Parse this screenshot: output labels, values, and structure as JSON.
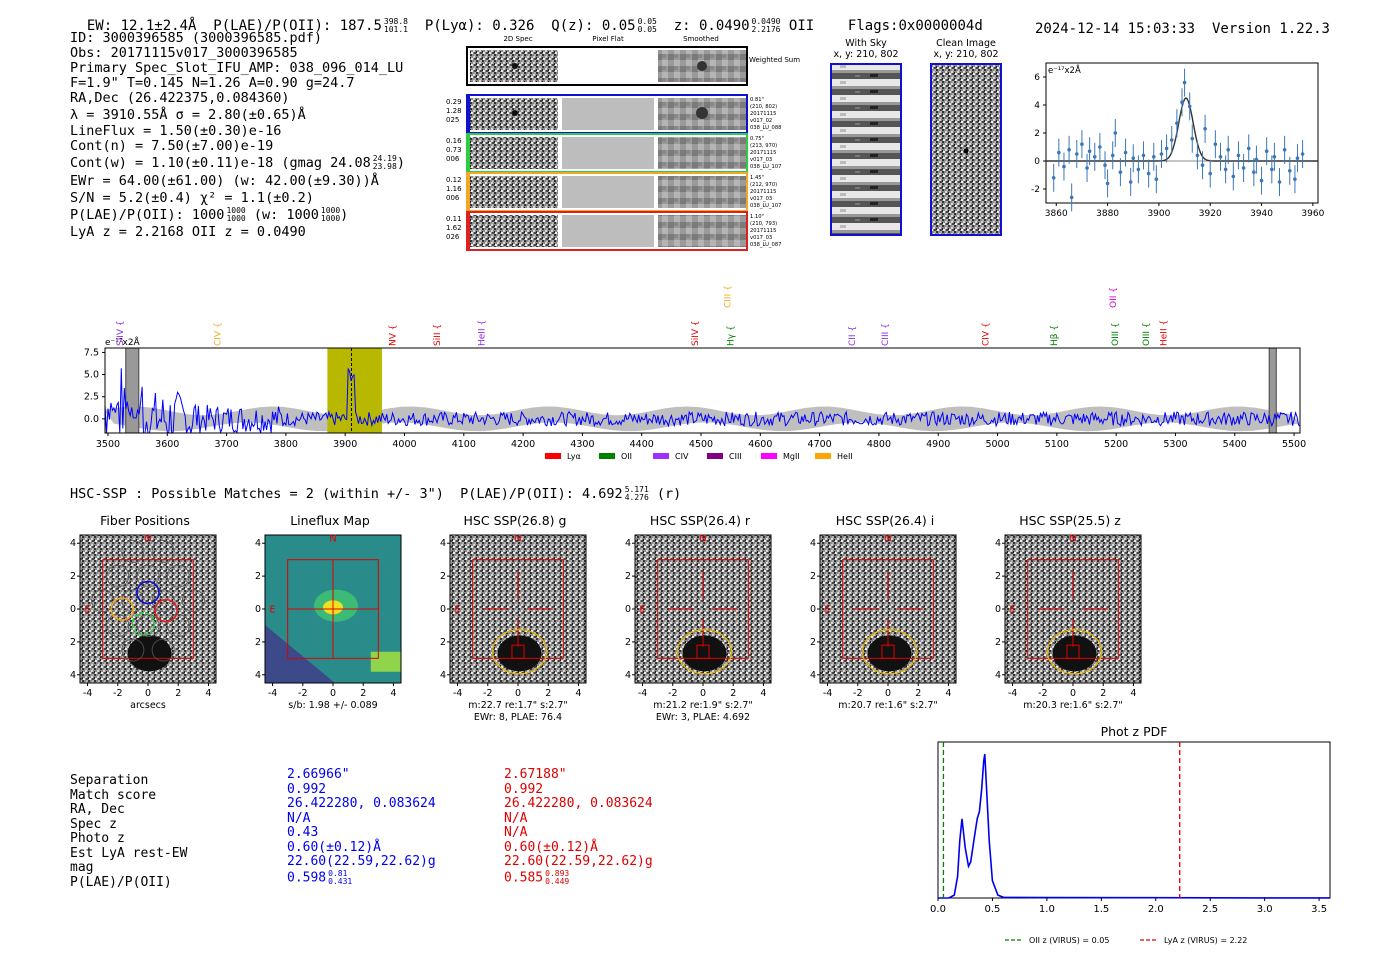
{
  "header": {
    "ew": "EW: 12.1±2.4Å",
    "plae": "P(LAE)/P(OII): 187.5",
    "plae_hi": "398.8",
    "plae_lo": "101.1",
    "plya": "P(Lyα): 0.326",
    "qz": "Q(z): 0.05",
    "qz_hi": "0.05",
    "qz_lo": "0.05",
    "z": "z: 0.0490",
    "z_hi": "0.0490",
    "z_lo": "2.2176",
    "z_line": "OII",
    "flags": "Flags:0x0000004d",
    "datetime": "2024-12-14 15:03:33",
    "version": "Version 1.22.3"
  },
  "info": {
    "id": "ID: 3000396585 (3000396585.pdf)",
    "obs": "Obs: 20171115v017_3000396585",
    "primary": "Primary Spec_Slot_IFU_AMP: 038_096_014_LU",
    "fit": "F=1.9\"  T=0.145  N=1.26  A=0.90  g=24.7",
    "radec": "RA,Dec (26.422375,0.084360)",
    "lambda": "λ = 3910.55Å   σ = 2.80(±0.65)Å",
    "lineflux": "LineFlux = 1.50(±0.30)e-16",
    "contn": "Cont(n) = 7.50(±7.00)e-19",
    "contw": "Cont(w) = 1.10(±0.11)e-18 (gmag 24.08",
    "contw_hi": "24.19",
    "contw_lo": "23.98",
    "ewr": "EWr = 64.00(±61.00) (w: 42.00(±9.30))Å",
    "sn": "S/N = 5.2(±0.4)  χ² = 1.1(±0.2)",
    "plae": "P(LAE)/P(OII): 1000",
    "plae_a_hi": "1000",
    "plae_a_lo": "1000",
    "plae_w": "(w: 1000",
    "plae_b_hi": "1000",
    "plae_b_lo": "1000",
    "lyaz": "LyA z = 2.2168   OII z = 0.0490"
  },
  "cutouts": {
    "col_2d": "2D Spec",
    "col_flat": "Pixel Flat",
    "col_smooth": "Smoothed",
    "weighted": "Weighted Sum",
    "rows": [
      {
        "left": [
          "0.29",
          "1.28",
          "025"
        ],
        "right": [
          "0.81\"",
          "(210, 802)",
          "20171115",
          "v017_02",
          "038_LU_088"
        ]
      },
      {
        "left": [
          "0.16",
          "0.73",
          "006"
        ],
        "right": [
          "0.75\"",
          "(213, 970)",
          "20171115",
          "v017_03",
          "038_LU_107"
        ]
      },
      {
        "left": [
          "0.12",
          "1.16",
          "006"
        ],
        "right": [
          "1.45\"",
          "(212, 970)",
          "20171115",
          "v017_03",
          "038_LU_107"
        ]
      },
      {
        "left": [
          "0.11",
          "1.62",
          "026"
        ],
        "right": [
          "1.10\"",
          "(210, 793)",
          "20171115",
          "v017_03",
          "038_LU_087"
        ]
      }
    ],
    "with_sky": "With Sky",
    "with_sky_xy": "x, y: 210, 802",
    "clean": "Clean Image",
    "clean_xy": "x, y: 210, 802"
  },
  "colors": {
    "row1": "#1010d0",
    "row2": "#2ecc40",
    "row3": "#f5a623",
    "row4": "#e02020",
    "spec_blue": "#0000ff",
    "fit_line": "#3a78b8",
    "olive": "#b8b800"
  },
  "chart_data": [
    {
      "type": "scatter",
      "title": "",
      "ylabel": "e⁻¹⁷x2Å",
      "xlim": [
        3856,
        3962
      ],
      "ylim": [
        -3,
        7
      ],
      "xticks": [
        3860,
        3880,
        3900,
        3920,
        3940,
        3960
      ],
      "yticks": [
        -2,
        0,
        2,
        4,
        6
      ],
      "fit": {
        "center": 3910.55,
        "sigma": 2.8,
        "amp": 4.5,
        "baseline": 0.0
      },
      "points": [
        [
          3859,
          -1.2
        ],
        [
          3861,
          0.6
        ],
        [
          3863,
          -0.4
        ],
        [
          3865,
          0.8
        ],
        [
          3866,
          -2.6
        ],
        [
          3868,
          0.5
        ],
        [
          3870,
          1.2
        ],
        [
          3872,
          -0.5
        ],
        [
          3873,
          0.7
        ],
        [
          3875,
          0.3
        ],
        [
          3877,
          1.0
        ],
        [
          3879,
          -0.3
        ],
        [
          3880,
          -1.6
        ],
        [
          3882,
          0.4
        ],
        [
          3883,
          2.0
        ],
        [
          3885,
          -0.8
        ],
        [
          3887,
          0.6
        ],
        [
          3889,
          -1.5
        ],
        [
          3890,
          0.2
        ],
        [
          3892,
          -0.6
        ],
        [
          3894,
          0.4
        ],
        [
          3896,
          -0.9
        ],
        [
          3898,
          0.3
        ],
        [
          3899,
          -1.3
        ],
        [
          3901,
          0.5
        ],
        [
          3903,
          0.9
        ],
        [
          3905,
          1.5
        ],
        [
          3907,
          2.7
        ],
        [
          3909,
          4.2
        ],
        [
          3910,
          5.6
        ],
        [
          3912,
          3.9
        ],
        [
          3913,
          1.6
        ],
        [
          3915,
          0.4
        ],
        [
          3917,
          -0.3
        ],
        [
          3918,
          2.3
        ],
        [
          3920,
          -0.9
        ],
        [
          3922,
          1.2
        ],
        [
          3924,
          0.3
        ],
        [
          3926,
          -0.6
        ],
        [
          3927,
          0.8
        ],
        [
          3929,
          -1.1
        ],
        [
          3931,
          0.4
        ],
        [
          3933,
          -0.5
        ],
        [
          3935,
          0.9
        ],
        [
          3937,
          -0.8
        ],
        [
          3938,
          0.1
        ],
        [
          3940,
          -1.4
        ],
        [
          3942,
          0.7
        ],
        [
          3944,
          -0.6
        ],
        [
          3945,
          0.3
        ],
        [
          3947,
          -1.5
        ],
        [
          3949,
          0.8
        ],
        [
          3951,
          -0.7
        ],
        [
          3953,
          -1.3
        ],
        [
          3954,
          0.2
        ],
        [
          3956,
          0.5
        ]
      ]
    },
    {
      "type": "line",
      "ylabel": "e⁻¹⁷x2Å",
      "xlim": [
        3495,
        5510
      ],
      "ylim": [
        -1.6,
        8
      ],
      "xticks": [
        3500,
        3600,
        3700,
        3800,
        3900,
        4000,
        4100,
        4200,
        4300,
        4400,
        4500,
        4600,
        4700,
        4800,
        4900,
        5000,
        5100,
        5200,
        5300,
        5400,
        5500
      ],
      "yticks": [
        0.0,
        2.5,
        5.0,
        7.5
      ],
      "highlight_range": [
        3870,
        3962
      ],
      "line_marker": 3910.55,
      "gray_bars": [
        [
          3530,
          3552
        ],
        [
          5458,
          5470
        ]
      ],
      "line_labels": [
        {
          "name": "SiIV",
          "wave": 3525,
          "color": "#8a2be2",
          "level": 1
        },
        {
          "name": "CIV",
          "wave": 3690,
          "color": "#f5a623",
          "level": 1
        },
        {
          "name": "NV",
          "wave": 3985,
          "color": "#e00000",
          "level": 1
        },
        {
          "name": "SiII",
          "wave": 4060,
          "color": "#e00000",
          "level": 1
        },
        {
          "name": "HeII",
          "wave": 4135,
          "color": "#8a2be2",
          "level": 1
        },
        {
          "name": "SiIV",
          "wave": 4495,
          "color": "#e00000",
          "level": 1
        },
        {
          "name": "CIII",
          "wave": 4550,
          "color": "#f5a623",
          "level": 0
        },
        {
          "name": "Hγ",
          "wave": 4555,
          "color": "#008000",
          "level": 1
        },
        {
          "name": "CII",
          "wave": 4760,
          "color": "#8a2be2",
          "level": 1
        },
        {
          "name": "CIII",
          "wave": 4815,
          "color": "#8a2be2",
          "level": 1
        },
        {
          "name": "CIV",
          "wave": 4985,
          "color": "#e00000",
          "level": 1
        },
        {
          "name": "Hβ",
          "wave": 5100,
          "color": "#008000",
          "level": 1
        },
        {
          "name": "OII",
          "wave": 5200,
          "color": "#cc00cc",
          "level": 0
        },
        {
          "name": "OIII",
          "wave": 5203,
          "color": "#008000",
          "level": 1
        },
        {
          "name": "OIII",
          "wave": 5255,
          "color": "#008000",
          "level": 1
        },
        {
          "name": "HeII",
          "wave": 5285,
          "color": "#e00000",
          "level": 1
        }
      ],
      "legend": [
        {
          "name": "Lyα",
          "color": "#ff0000"
        },
        {
          "name": "OII",
          "color": "#008000"
        },
        {
          "name": "CIV",
          "color": "#9b30ff"
        },
        {
          "name": "CIII",
          "color": "#800080"
        },
        {
          "name": "MgII",
          "color": "#ff00ff"
        },
        {
          "name": "HeII",
          "color": "#ffa500"
        }
      ]
    },
    {
      "type": "line",
      "title": "Phot z PDF",
      "xlim": [
        0,
        3.6
      ],
      "xticks": [
        0.0,
        0.5,
        1.0,
        1.5,
        2.0,
        2.5,
        3.0,
        3.5
      ],
      "vlines": [
        {
          "x": 0.05,
          "color": "#008000",
          "label": "OII z (VIRUS) = 0.05"
        },
        {
          "x": 2.22,
          "color": "#e00000",
          "label": "LyA z (VIRUS) = 2.22"
        }
      ],
      "x": [
        0,
        0.1,
        0.15,
        0.18,
        0.2,
        0.22,
        0.25,
        0.28,
        0.3,
        0.33,
        0.36,
        0.38,
        0.4,
        0.42,
        0.43,
        0.45,
        0.47,
        0.5,
        0.55,
        0.6,
        1.0,
        2.0,
        3.0,
        3.6
      ],
      "values": [
        0,
        0,
        0.02,
        0.15,
        0.4,
        0.55,
        0.35,
        0.22,
        0.25,
        0.4,
        0.55,
        0.6,
        0.75,
        0.95,
        1.0,
        0.7,
        0.4,
        0.12,
        0.02,
        0.005,
        0.003,
        0.002,
        0.001,
        0.001
      ]
    }
  ],
  "hsc": {
    "summary": "HSC-SSP : Possible Matches = 2 (within +/- 3\")  P(LAE)/P(OII): 4.692",
    "summary_hi": "5.171",
    "summary_lo": "4.276",
    "summary_band": "(r)",
    "panels": [
      {
        "title": "Fiber Positions",
        "caption1": "arcsecs",
        "caption2": ""
      },
      {
        "title": "Lineflux Map",
        "caption1": "s/b: 1.98 +/- 0.089",
        "caption2": ""
      },
      {
        "title": "HSC SSP(26.8) g",
        "caption1": "m:22.7  re:1.7\"  s:2.7\"",
        "caption2": "EWr: 8, PLAE: 76.4"
      },
      {
        "title": "HSC SSP(26.4) r",
        "caption1": "m:21.2  re:1.9\"  s:2.7\"",
        "caption2": "EWr: 3, PLAE: 4.692"
      },
      {
        "title": "HSC SSP(26.4) i",
        "caption1": "m:20.7  re:1.6\"  s:2.7\"",
        "caption2": ""
      },
      {
        "title": "HSC SSP(25.5) z",
        "caption1": "m:20.3  re:1.6\"  s:2.7\"",
        "caption2": ""
      }
    ],
    "axis_ticks": [
      "-4",
      "-2",
      "0",
      "2",
      "4"
    ],
    "north": "N",
    "east": "E"
  },
  "match_table": {
    "labels": [
      "Separation",
      "Match score",
      "RA, Dec",
      "Spec z",
      "Photo z",
      "Est LyA rest-EW",
      "mag",
      "P(LAE)/P(OII)"
    ],
    "col1": [
      "2.66966\"",
      "0.992",
      "26.422280, 0.083624",
      "N/A",
      "0.43",
      "0.60(±0.12)Å",
      "22.60(22.59,22.62)g",
      "0.598"
    ],
    "col1_plae_hi": "0.81",
    "col1_plae_lo": "0.431",
    "col2": [
      "2.67188\"",
      "0.992",
      "26.422280, 0.083624",
      "N/A",
      "N/A",
      "0.60(±0.12)Å",
      "22.60(22.59,22.62)g",
      "0.585"
    ],
    "col2_plae_hi": "0.893",
    "col2_plae_lo": "0.449"
  }
}
